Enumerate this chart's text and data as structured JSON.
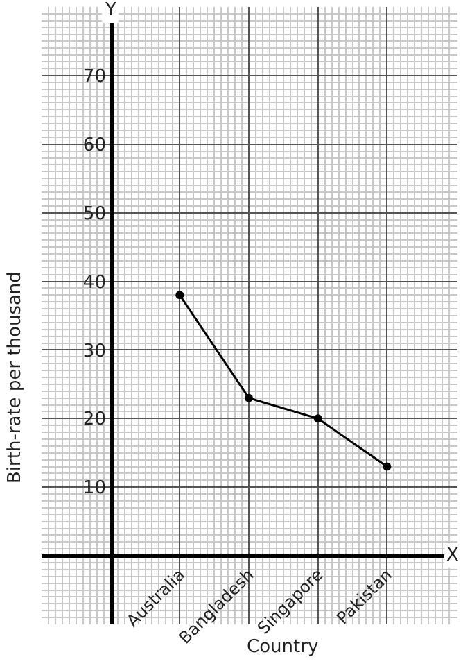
{
  "chart_data": {
    "type": "line",
    "xlabel": "Country",
    "ylabel": "Birth-rate per thousand",
    "categories": [
      "Australia",
      "Bangladesh",
      "Singapore",
      "Pakistan"
    ],
    "series": [
      {
        "color": "#000000",
        "values": [
          38,
          23,
          20,
          13
        ]
      }
    ],
    "ylim": [
      -10,
      80
    ],
    "yticks": [
      {
        "value": 0,
        "label": null
      },
      10,
      20,
      30,
      40,
      50,
      60,
      70
    ],
    "annotations": [
      "X",
      "Y"
    ],
    "grid": true,
    "marker": "circle",
    "line_style": "solid",
    "legend": false
  }
}
